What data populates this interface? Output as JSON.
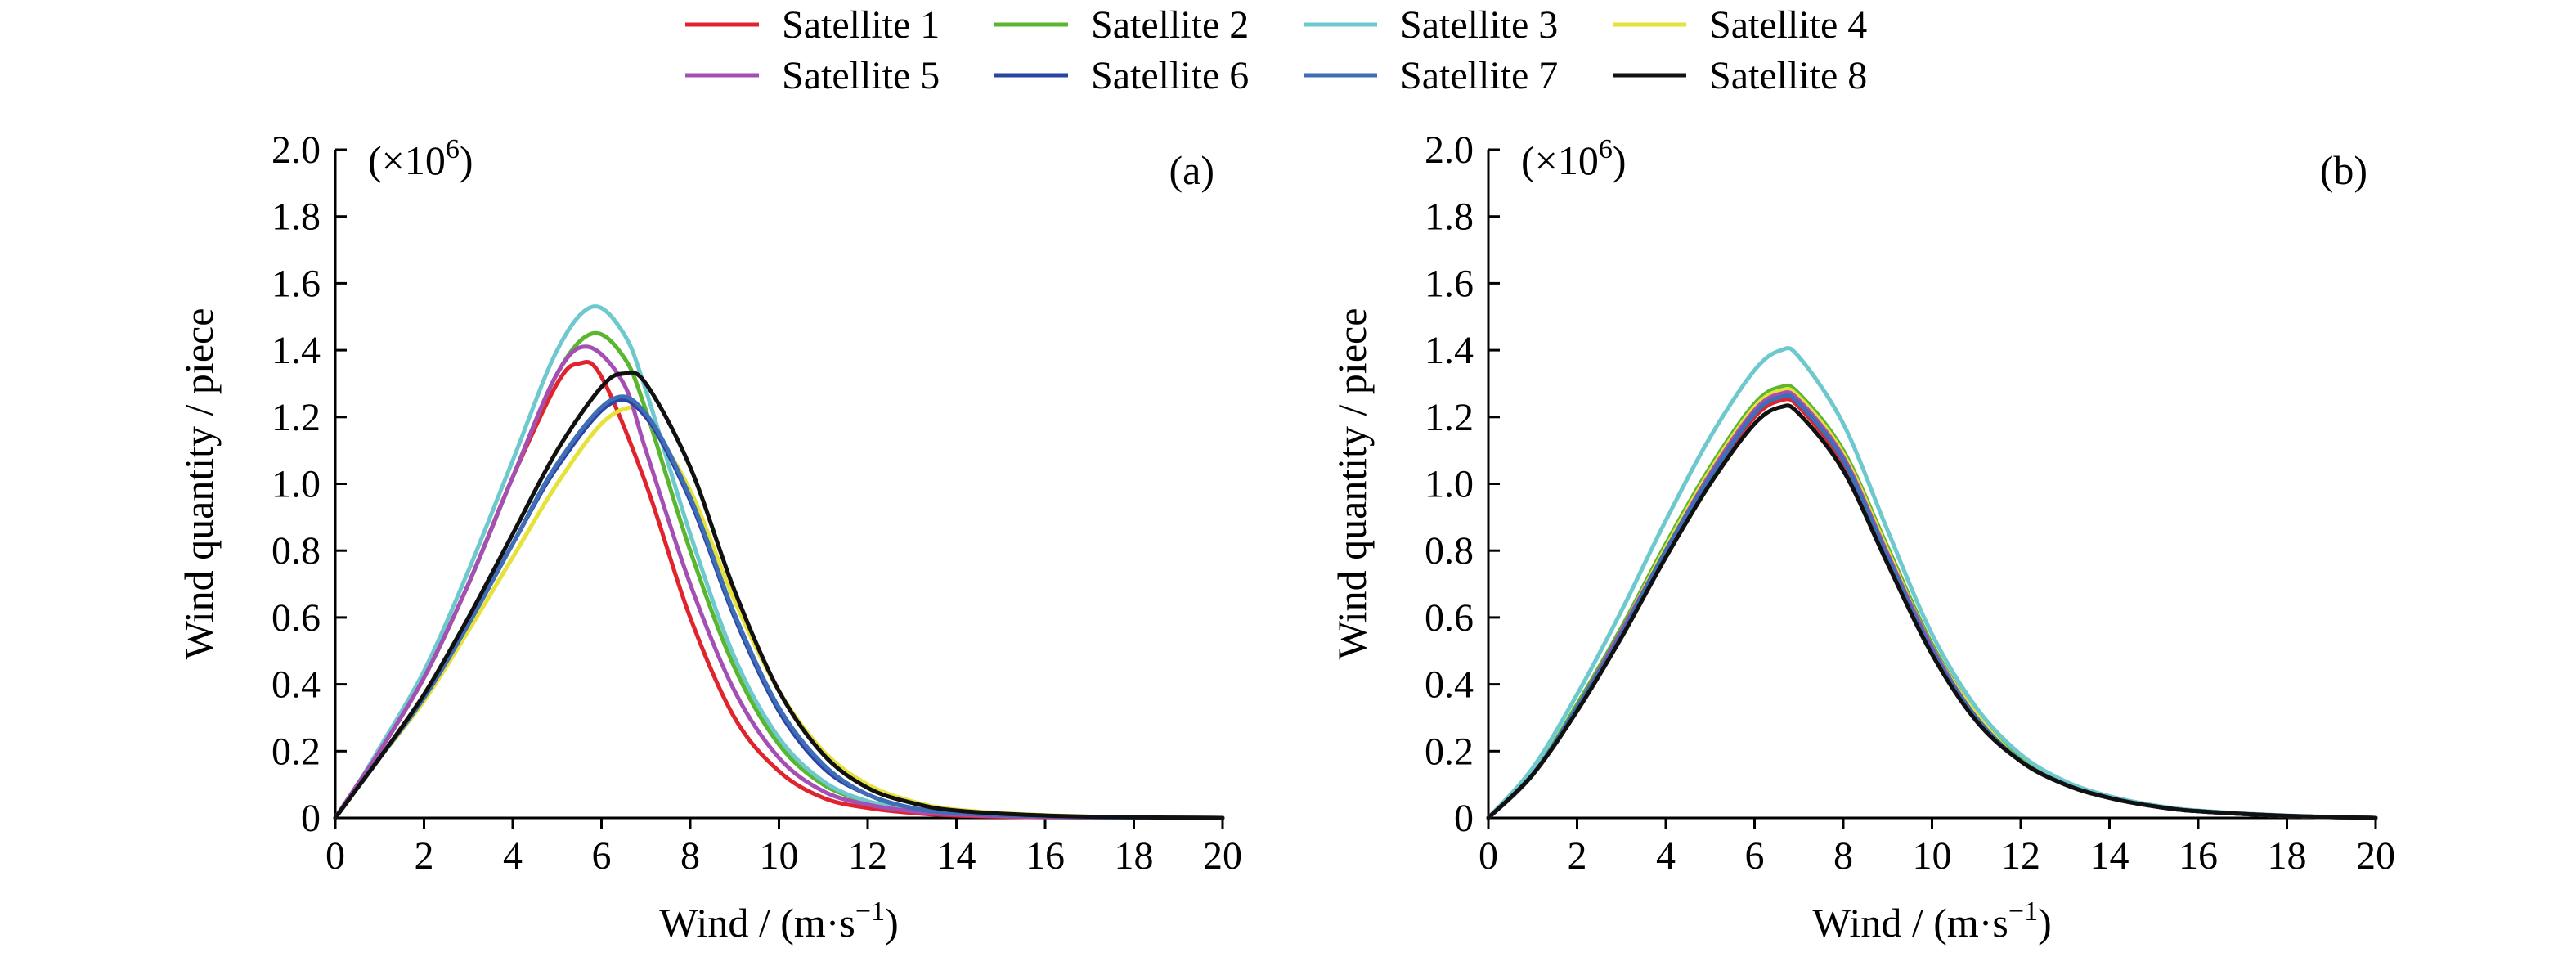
{
  "legend": {
    "placement": "top-center",
    "entries": [
      {
        "label": "Satellite 1",
        "color": "#e0242e"
      },
      {
        "label": "Satellite 2",
        "color": "#5ab52f"
      },
      {
        "label": "Satellite 3",
        "color": "#6ec9cf"
      },
      {
        "label": "Satellite 4",
        "color": "#e6e23a"
      },
      {
        "label": "Satellite 5",
        "color": "#a54fb4"
      },
      {
        "label": "Satellite 6",
        "color": "#2944a5"
      },
      {
        "label": "Satellite 7",
        "color": "#3f6eb6"
      },
      {
        "label": "Satellite 8",
        "color": "#111111"
      }
    ]
  },
  "chart_data": [
    {
      "type": "line",
      "panel_label": "(a)",
      "xlabel": "Wind / (m·s",
      "xlabel_sup": "−1",
      "xlabel_end": ")",
      "ylabel": "Wind quantity / piece",
      "yscale_note": "(×10",
      "yscale_sup": "6",
      "yscale_end": ")",
      "xlim": [
        0,
        20
      ],
      "ylim": [
        0,
        2.0
      ],
      "xticks": [
        "0",
        "2",
        "4",
        "6",
        "8",
        "10",
        "12",
        "14",
        "16",
        "18",
        "20"
      ],
      "yticks": [
        "0",
        "0.2",
        "0.4",
        "0.6",
        "0.8",
        "1.0",
        "1.2",
        "1.4",
        "1.6",
        "1.8",
        "2.0"
      ],
      "grid": false,
      "series": [
        {
          "name": "Satellite 1",
          "color": "#e0242e",
          "x": [
            0,
            0.5,
            1,
            2,
            3,
            4,
            5,
            5.5,
            6,
            7,
            8,
            9,
            10,
            11,
            12,
            13,
            14,
            16,
            18,
            20
          ],
          "y": [
            0,
            0.1,
            0.2,
            0.42,
            0.7,
            1.02,
            1.3,
            1.36,
            1.32,
            1.0,
            0.6,
            0.3,
            0.14,
            0.06,
            0.03,
            0.015,
            0.007,
            0.002,
            0.001,
            0
          ]
        },
        {
          "name": "Satellite 2",
          "color": "#5ab52f",
          "x": [
            0,
            0.5,
            1,
            2,
            3,
            4,
            5,
            5.8,
            6.5,
            7,
            8,
            9,
            10,
            11,
            12,
            13,
            14,
            16,
            18,
            20
          ],
          "y": [
            0,
            0.1,
            0.2,
            0.42,
            0.7,
            1.02,
            1.33,
            1.45,
            1.38,
            1.22,
            0.8,
            0.45,
            0.22,
            0.1,
            0.05,
            0.025,
            0.012,
            0.004,
            0.001,
            0
          ]
        },
        {
          "name": "Satellite 3",
          "color": "#6ec9cf",
          "x": [
            0,
            0.5,
            1,
            2,
            3,
            4,
            5,
            5.8,
            6.5,
            7,
            8,
            9,
            10,
            11,
            12,
            13,
            14,
            16,
            18,
            20
          ],
          "y": [
            0,
            0.1,
            0.21,
            0.44,
            0.74,
            1.07,
            1.4,
            1.53,
            1.45,
            1.28,
            0.85,
            0.48,
            0.24,
            0.11,
            0.05,
            0.025,
            0.012,
            0.004,
            0.001,
            0
          ]
        },
        {
          "name": "Satellite 4",
          "color": "#e6e23a",
          "x": [
            0,
            0.5,
            1,
            2,
            3,
            4,
            5,
            6,
            6.7,
            7,
            8,
            9,
            10,
            11,
            12,
            13,
            14,
            16,
            18,
            20
          ],
          "y": [
            0,
            0.09,
            0.18,
            0.35,
            0.56,
            0.78,
            1.0,
            1.18,
            1.23,
            1.2,
            0.98,
            0.65,
            0.38,
            0.2,
            0.1,
            0.05,
            0.025,
            0.008,
            0.002,
            0
          ]
        },
        {
          "name": "Satellite 5",
          "color": "#a54fb4",
          "x": [
            0,
            0.5,
            1,
            2,
            3,
            4,
            5,
            5.7,
            6.5,
            7,
            8,
            9,
            10,
            11,
            12,
            13,
            14,
            16,
            18,
            20
          ],
          "y": [
            0,
            0.1,
            0.2,
            0.42,
            0.7,
            1.02,
            1.33,
            1.41,
            1.3,
            1.1,
            0.7,
            0.38,
            0.18,
            0.08,
            0.04,
            0.02,
            0.01,
            0.003,
            0.001,
            0
          ]
        },
        {
          "name": "Satellite 6",
          "color": "#2944a5",
          "x": [
            0,
            0.5,
            1,
            2,
            3,
            4,
            5,
            6.2,
            7,
            8,
            9,
            10,
            11,
            12,
            13,
            14,
            16,
            18,
            20
          ],
          "y": [
            0,
            0.09,
            0.18,
            0.36,
            0.58,
            0.82,
            1.05,
            1.24,
            1.2,
            0.95,
            0.6,
            0.32,
            0.15,
            0.07,
            0.03,
            0.015,
            0.005,
            0.001,
            0
          ]
        },
        {
          "name": "Satellite 7",
          "color": "#3f6eb6",
          "x": [
            0,
            0.5,
            1,
            2,
            3,
            4,
            5,
            6.2,
            7,
            8,
            9,
            10,
            11,
            12,
            13,
            14,
            16,
            18,
            20
          ],
          "y": [
            0,
            0.09,
            0.18,
            0.36,
            0.58,
            0.82,
            1.06,
            1.25,
            1.21,
            0.96,
            0.61,
            0.33,
            0.16,
            0.07,
            0.03,
            0.015,
            0.005,
            0.001,
            0
          ]
        },
        {
          "name": "Satellite 8",
          "color": "#111111",
          "x": [
            0,
            0.5,
            1,
            2,
            3,
            4,
            5,
            6,
            6.5,
            7,
            8,
            9,
            10,
            11,
            12,
            13,
            14,
            16,
            18,
            20
          ],
          "y": [
            0,
            0.09,
            0.18,
            0.37,
            0.6,
            0.85,
            1.1,
            1.29,
            1.33,
            1.3,
            1.05,
            0.68,
            0.38,
            0.19,
            0.09,
            0.045,
            0.022,
            0.007,
            0.002,
            0
          ]
        }
      ]
    },
    {
      "type": "line",
      "panel_label": "(b)",
      "xlabel": "Wind / (m·s",
      "xlabel_sup": "−1",
      "xlabel_end": ")",
      "ylabel": "Wind quantity / piece",
      "yscale_note": "(×10",
      "yscale_sup": "6",
      "yscale_end": ")",
      "xlim": [
        0,
        20
      ],
      "ylim": [
        0,
        2.0
      ],
      "xticks": [
        "0",
        "2",
        "4",
        "6",
        "8",
        "10",
        "12",
        "14",
        "16",
        "18",
        "20"
      ],
      "yticks": [
        "0",
        "0.2",
        "0.4",
        "0.6",
        "0.8",
        "1.0",
        "1.2",
        "1.4",
        "1.6",
        "1.8",
        "2.0"
      ],
      "grid": false,
      "series": [
        {
          "name": "Satellite 1",
          "color": "#e0242e",
          "x": [
            0,
            1,
            2,
            3,
            4,
            5,
            6,
            6.6,
            7,
            8,
            9,
            10,
            11,
            12,
            13,
            14,
            15,
            16,
            18,
            20
          ],
          "y": [
            0,
            0.13,
            0.33,
            0.55,
            0.79,
            1.02,
            1.2,
            1.25,
            1.23,
            1.06,
            0.78,
            0.5,
            0.3,
            0.17,
            0.1,
            0.06,
            0.035,
            0.02,
            0.006,
            0
          ]
        },
        {
          "name": "Satellite 2",
          "color": "#5ab52f",
          "x": [
            0,
            1,
            2,
            3,
            4,
            5,
            6,
            6.6,
            7,
            8,
            9,
            10,
            11,
            12,
            13,
            14,
            15,
            16,
            18,
            20
          ],
          "y": [
            0,
            0.13,
            0.34,
            0.57,
            0.82,
            1.05,
            1.24,
            1.29,
            1.27,
            1.1,
            0.81,
            0.52,
            0.31,
            0.18,
            0.1,
            0.06,
            0.035,
            0.02,
            0.006,
            0
          ]
        },
        {
          "name": "Satellite 3",
          "color": "#6ec9cf",
          "x": [
            0,
            1,
            2,
            3,
            4,
            5,
            6,
            6.6,
            7,
            8,
            9,
            10,
            11,
            12,
            13,
            14,
            15,
            16,
            18,
            20
          ],
          "y": [
            0,
            0.15,
            0.37,
            0.62,
            0.89,
            1.14,
            1.34,
            1.4,
            1.38,
            1.18,
            0.86,
            0.55,
            0.33,
            0.19,
            0.11,
            0.065,
            0.038,
            0.022,
            0.007,
            0
          ]
        },
        {
          "name": "Satellite 4",
          "color": "#e6e23a",
          "x": [
            0,
            1,
            2,
            3,
            4,
            5,
            6,
            6.6,
            7,
            8,
            9,
            10,
            11,
            12,
            13,
            14,
            15,
            16,
            18,
            20
          ],
          "y": [
            0,
            0.13,
            0.33,
            0.56,
            0.81,
            1.04,
            1.23,
            1.28,
            1.26,
            1.09,
            0.8,
            0.51,
            0.31,
            0.17,
            0.1,
            0.06,
            0.035,
            0.02,
            0.006,
            0
          ]
        },
        {
          "name": "Satellite 5",
          "color": "#a54fb4",
          "x": [
            0,
            1,
            2,
            3,
            4,
            5,
            6,
            6.6,
            7,
            8,
            9,
            10,
            11,
            12,
            13,
            14,
            15,
            16,
            18,
            20
          ],
          "y": [
            0,
            0.13,
            0.33,
            0.56,
            0.8,
            1.03,
            1.22,
            1.27,
            1.25,
            1.08,
            0.79,
            0.51,
            0.3,
            0.17,
            0.1,
            0.06,
            0.035,
            0.02,
            0.006,
            0
          ]
        },
        {
          "name": "Satellite 6",
          "color": "#2944a5",
          "x": [
            0,
            1,
            2,
            3,
            4,
            5,
            6,
            6.6,
            7,
            8,
            9,
            10,
            11,
            12,
            13,
            14,
            15,
            16,
            18,
            20
          ],
          "y": [
            0,
            0.13,
            0.33,
            0.55,
            0.8,
            1.02,
            1.21,
            1.26,
            1.24,
            1.07,
            0.78,
            0.5,
            0.3,
            0.17,
            0.1,
            0.06,
            0.035,
            0.02,
            0.006,
            0
          ]
        },
        {
          "name": "Satellite 7",
          "color": "#3f6eb6",
          "x": [
            0,
            1,
            2,
            3,
            4,
            5,
            6,
            6.6,
            7,
            8,
            9,
            10,
            11,
            12,
            13,
            14,
            15,
            16,
            18,
            20
          ],
          "y": [
            0,
            0.13,
            0.33,
            0.55,
            0.8,
            1.02,
            1.21,
            1.26,
            1.24,
            1.07,
            0.78,
            0.5,
            0.3,
            0.17,
            0.1,
            0.06,
            0.035,
            0.02,
            0.006,
            0
          ]
        },
        {
          "name": "Satellite 8",
          "color": "#111111",
          "x": [
            0,
            1,
            2,
            3,
            4,
            5,
            6,
            6.6,
            7,
            8,
            9,
            10,
            11,
            12,
            13,
            14,
            15,
            16,
            18,
            20
          ],
          "y": [
            0,
            0.13,
            0.32,
            0.54,
            0.78,
            1.0,
            1.18,
            1.23,
            1.21,
            1.04,
            0.76,
            0.49,
            0.29,
            0.17,
            0.1,
            0.06,
            0.035,
            0.02,
            0.006,
            0
          ]
        }
      ]
    }
  ]
}
